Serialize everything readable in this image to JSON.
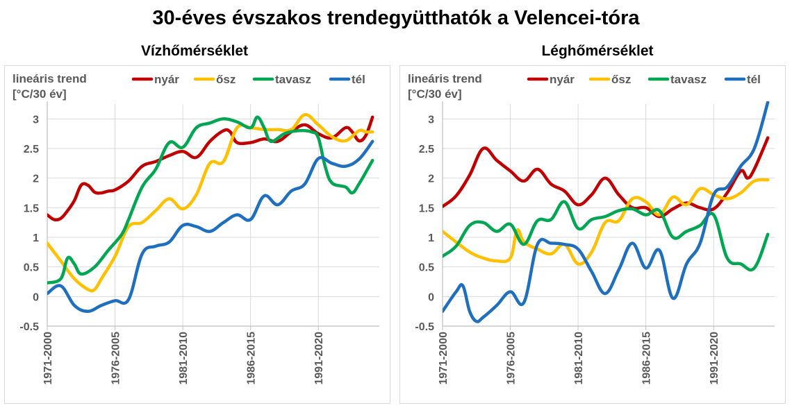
{
  "title": "30-éves évszakos trendegyütthatók a Velencei-tóra",
  "colors": {
    "nyár": "#c00000",
    "ősz": "#ffc000",
    "tavasz": "#00a651",
    "tél": "#1f6fbf"
  },
  "chart_data": [
    {
      "type": "line",
      "title": "Vízhőmérséklet",
      "ylabel_line1": "lineáris trend",
      "ylabel_line2": "[°C/30 év]",
      "ylim": [
        -0.5,
        3.25
      ],
      "yticks": [
        "-0.5",
        "0",
        "0.5",
        "1",
        "1.5",
        "2",
        "2.5",
        "3"
      ],
      "ytick_values": [
        -0.5,
        0,
        0.5,
        1,
        1.5,
        2,
        2.5,
        3
      ],
      "x_index": [
        0,
        49
      ],
      "xticks": [
        {
          "i": 0,
          "label": "1971-2000"
        },
        {
          "i": 10,
          "label": "1976-2005"
        },
        {
          "i": 20,
          "label": "1981-2010"
        },
        {
          "i": 30,
          "label": "1986-2015"
        },
        {
          "i": 40,
          "label": "1991-2020"
        }
      ],
      "grid": true,
      "legend": "top",
      "series": [
        {
          "name": "nyár",
          "color": "#c00000",
          "points": [
            [
              0,
              1.38
            ],
            [
              1,
              1.3
            ],
            [
              2,
              1.32
            ],
            [
              3,
              1.45
            ],
            [
              4,
              1.62
            ],
            [
              5,
              1.88
            ],
            [
              6,
              1.88
            ],
            [
              7,
              1.76
            ],
            [
              8,
              1.75
            ],
            [
              9,
              1.78
            ],
            [
              10,
              1.8
            ],
            [
              12,
              1.95
            ],
            [
              14,
              2.2
            ],
            [
              16,
              2.28
            ],
            [
              18,
              2.38
            ],
            [
              20,
              2.45
            ],
            [
              22,
              2.35
            ],
            [
              24,
              2.62
            ],
            [
              26,
              2.8
            ],
            [
              27,
              2.78
            ],
            [
              28,
              2.6
            ],
            [
              30,
              2.6
            ],
            [
              32,
              2.66
            ],
            [
              34,
              2.62
            ],
            [
              36,
              2.78
            ],
            [
              38,
              2.9
            ],
            [
              40,
              2.75
            ],
            [
              42,
              2.68
            ],
            [
              44,
              2.85
            ],
            [
              45,
              2.78
            ],
            [
              46,
              2.63
            ],
            [
              47,
              2.72
            ],
            [
              48,
              3.03
            ]
          ]
        },
        {
          "name": "ősz",
          "color": "#ffc000",
          "points": [
            [
              0,
              0.9
            ],
            [
              2,
              0.6
            ],
            [
              4,
              0.3
            ],
            [
              6,
              0.12
            ],
            [
              7,
              0.12
            ],
            [
              8,
              0.3
            ],
            [
              10,
              0.68
            ],
            [
              12,
              1.18
            ],
            [
              14,
              1.25
            ],
            [
              16,
              1.45
            ],
            [
              18,
              1.65
            ],
            [
              20,
              1.48
            ],
            [
              22,
              1.72
            ],
            [
              24,
              2.25
            ],
            [
              26,
              2.28
            ],
            [
              28,
              2.85
            ],
            [
              30,
              2.85
            ],
            [
              32,
              2.82
            ],
            [
              34,
              2.82
            ],
            [
              36,
              2.82
            ],
            [
              38,
              3.07
            ],
            [
              40,
              2.9
            ],
            [
              42,
              2.7
            ],
            [
              44,
              2.63
            ],
            [
              46,
              2.8
            ],
            [
              47,
              2.78
            ],
            [
              48,
              2.78
            ]
          ]
        },
        {
          "name": "tavasz",
          "color": "#00a651",
          "points": [
            [
              0,
              0.23
            ],
            [
              2,
              0.3
            ],
            [
              3,
              0.65
            ],
            [
              4,
              0.55
            ],
            [
              5,
              0.38
            ],
            [
              7,
              0.5
            ],
            [
              9,
              0.78
            ],
            [
              11,
              1.05
            ],
            [
              12,
              1.3
            ],
            [
              14,
              1.85
            ],
            [
              16,
              2.15
            ],
            [
              18,
              2.6
            ],
            [
              20,
              2.52
            ],
            [
              22,
              2.85
            ],
            [
              24,
              2.93
            ],
            [
              26,
              3.0
            ],
            [
              28,
              2.95
            ],
            [
              30,
              2.85
            ],
            [
              31,
              3.03
            ],
            [
              32,
              2.85
            ],
            [
              33,
              2.62
            ],
            [
              35,
              2.75
            ],
            [
              37,
              2.8
            ],
            [
              39,
              2.78
            ],
            [
              40,
              2.68
            ],
            [
              41,
              2.2
            ],
            [
              42,
              1.92
            ],
            [
              44,
              1.85
            ],
            [
              45,
              1.75
            ],
            [
              46,
              1.9
            ],
            [
              48,
              2.3
            ]
          ]
        },
        {
          "name": "tél",
          "color": "#1f6fbf",
          "points": [
            [
              0,
              0.05
            ],
            [
              2,
              0.18
            ],
            [
              4,
              -0.15
            ],
            [
              6,
              -0.25
            ],
            [
              8,
              -0.15
            ],
            [
              10,
              -0.07
            ],
            [
              12,
              -0.05
            ],
            [
              14,
              0.72
            ],
            [
              16,
              0.85
            ],
            [
              18,
              0.92
            ],
            [
              20,
              1.2
            ],
            [
              22,
              1.18
            ],
            [
              24,
              1.1
            ],
            [
              26,
              1.25
            ],
            [
              28,
              1.38
            ],
            [
              30,
              1.3
            ],
            [
              32,
              1.7
            ],
            [
              34,
              1.55
            ],
            [
              36,
              1.78
            ],
            [
              38,
              1.9
            ],
            [
              40,
              2.33
            ],
            [
              42,
              2.25
            ],
            [
              44,
              2.2
            ],
            [
              46,
              2.32
            ],
            [
              48,
              2.62
            ]
          ]
        }
      ]
    },
    {
      "type": "line",
      "title": "Léghőmérséklet",
      "ylabel_line1": "lineáris trend",
      "ylabel_line2": "[°C/30 év]",
      "ylim": [
        -0.5,
        3.25
      ],
      "yticks": [
        "-0.5",
        "0",
        "0.5",
        "1",
        "1.5",
        "2",
        "2.5",
        "3"
      ],
      "ytick_values": [
        -0.5,
        0,
        0.5,
        1,
        1.5,
        2,
        2.5,
        3
      ],
      "x_index": [
        0,
        49
      ],
      "xticks": [
        {
          "i": 0,
          "label": "1971-2000"
        },
        {
          "i": 10,
          "label": "1976-2005"
        },
        {
          "i": 20,
          "label": "1981-2010"
        },
        {
          "i": 30,
          "label": "1986-2015"
        },
        {
          "i": 40,
          "label": "1991-2020"
        }
      ],
      "grid": true,
      "legend": "top",
      "series": [
        {
          "name": "nyár",
          "color": "#c00000",
          "points": [
            [
              0,
              1.52
            ],
            [
              2,
              1.7
            ],
            [
              4,
              2.05
            ],
            [
              6,
              2.5
            ],
            [
              8,
              2.3
            ],
            [
              10,
              2.12
            ],
            [
              12,
              1.95
            ],
            [
              14,
              2.15
            ],
            [
              16,
              1.9
            ],
            [
              18,
              1.78
            ],
            [
              20,
              1.55
            ],
            [
              22,
              1.72
            ],
            [
              24,
              2.0
            ],
            [
              26,
              1.72
            ],
            [
              28,
              1.5
            ],
            [
              30,
              1.5
            ],
            [
              32,
              1.35
            ],
            [
              34,
              1.48
            ],
            [
              36,
              1.58
            ],
            [
              38,
              1.5
            ],
            [
              40,
              1.48
            ],
            [
              42,
              1.75
            ],
            [
              44,
              2.12
            ],
            [
              45,
              2.0
            ],
            [
              46,
              2.15
            ],
            [
              48,
              2.68
            ]
          ]
        },
        {
          "name": "ősz",
          "color": "#ffc000",
          "points": [
            [
              0,
              1.1
            ],
            [
              2,
              0.92
            ],
            [
              4,
              0.75
            ],
            [
              6,
              0.65
            ],
            [
              8,
              0.6
            ],
            [
              10,
              0.65
            ],
            [
              11,
              1.12
            ],
            [
              12,
              0.92
            ],
            [
              14,
              0.8
            ],
            [
              16,
              0.72
            ],
            [
              18,
              0.88
            ],
            [
              20,
              0.55
            ],
            [
              22,
              0.75
            ],
            [
              24,
              1.25
            ],
            [
              26,
              1.28
            ],
            [
              28,
              1.65
            ],
            [
              30,
              1.6
            ],
            [
              32,
              1.38
            ],
            [
              34,
              1.68
            ],
            [
              36,
              1.55
            ],
            [
              38,
              1.82
            ],
            [
              40,
              1.72
            ],
            [
              42,
              1.65
            ],
            [
              44,
              1.75
            ],
            [
              46,
              1.95
            ],
            [
              48,
              1.97
            ]
          ]
        },
        {
          "name": "tavasz",
          "color": "#00a651",
          "points": [
            [
              0,
              0.68
            ],
            [
              2,
              0.85
            ],
            [
              4,
              1.2
            ],
            [
              6,
              1.25
            ],
            [
              8,
              1.1
            ],
            [
              10,
              1.22
            ],
            [
              12,
              0.88
            ],
            [
              14,
              1.28
            ],
            [
              16,
              1.3
            ],
            [
              18,
              1.6
            ],
            [
              20,
              1.15
            ],
            [
              22,
              1.3
            ],
            [
              24,
              1.35
            ],
            [
              26,
              1.45
            ],
            [
              28,
              1.48
            ],
            [
              30,
              1.38
            ],
            [
              32,
              1.45
            ],
            [
              34,
              1.0
            ],
            [
              36,
              1.1
            ],
            [
              38,
              1.2
            ],
            [
              40,
              1.38
            ],
            [
              42,
              0.65
            ],
            [
              44,
              0.55
            ],
            [
              46,
              0.48
            ],
            [
              48,
              1.05
            ]
          ]
        },
        {
          "name": "tél",
          "color": "#1f6fbf",
          "points": [
            [
              0,
              -0.25
            ],
            [
              2,
              0.08
            ],
            [
              3,
              0.18
            ],
            [
              4,
              -0.25
            ],
            [
              5,
              -0.42
            ],
            [
              6,
              -0.35
            ],
            [
              8,
              -0.15
            ],
            [
              10,
              0.08
            ],
            [
              12,
              -0.1
            ],
            [
              14,
              0.88
            ],
            [
              16,
              0.9
            ],
            [
              18,
              0.88
            ],
            [
              20,
              0.8
            ],
            [
              22,
              0.42
            ],
            [
              24,
              0.05
            ],
            [
              26,
              0.45
            ],
            [
              28,
              0.9
            ],
            [
              30,
              0.48
            ],
            [
              32,
              0.78
            ],
            [
              34,
              -0.03
            ],
            [
              36,
              0.55
            ],
            [
              38,
              0.9
            ],
            [
              40,
              1.72
            ],
            [
              42,
              1.85
            ],
            [
              44,
              2.2
            ],
            [
              46,
              2.5
            ],
            [
              48,
              3.28
            ]
          ]
        }
      ]
    }
  ]
}
